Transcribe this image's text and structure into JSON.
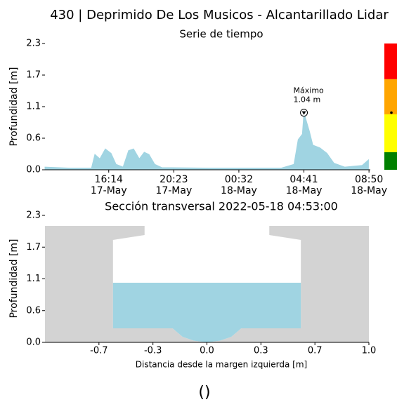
{
  "title": "430 | Deprimido De Los Musicos - Alcantarillado Lidar",
  "footer": "()",
  "chart_data": [
    {
      "type": "area",
      "title": "Serie de tiempo",
      "ylabel": "Profundidad [m]",
      "color": "#a0d4e2",
      "x": [
        "17-May 12:10",
        "17-May 13:47",
        "17-May 15:08",
        "17-May 15:21",
        "17-May 15:40",
        "17-May 16:01",
        "17-May 16:23",
        "17-May 16:42",
        "17-May 17:09",
        "17-May 17:30",
        "17-May 17:49",
        "17-May 18:11",
        "17-May 18:30",
        "17-May 18:48",
        "17-May 19:10",
        "17-May 19:37",
        "17-May 22:45",
        "18-May 03:14",
        "18-May 04:03",
        "18-May 04:19",
        "18-May 04:35",
        "18-May 04:41",
        "18-May 05:02",
        "18-May 05:15",
        "18-May 05:42",
        "18-May 06:09",
        "18-May 06:36",
        "18-May 07:17",
        "18-May 08:24",
        "18-May 08:48"
      ],
      "values": [
        0.05,
        0.03,
        0.03,
        0.28,
        0.2,
        0.38,
        0.3,
        0.1,
        0.05,
        0.35,
        0.38,
        0.2,
        0.32,
        0.28,
        0.1,
        0.04,
        0.03,
        0.03,
        0.1,
        0.55,
        0.65,
        1.04,
        0.7,
        0.45,
        0.4,
        0.3,
        0.12,
        0.05,
        0.08,
        0.18
      ],
      "xlim": [
        "17-May 12:10",
        "18-May 08:55"
      ],
      "xticks": [
        {
          "value": "17-May 16:14",
          "label": [
            "16:14",
            "17-May"
          ]
        },
        {
          "value": "17-May 20:23",
          "label": [
            "20:23",
            "17-May"
          ]
        },
        {
          "value": "18-May 00:32",
          "label": [
            "00:32",
            "18-May"
          ]
        },
        {
          "value": "18-May 04:41",
          "label": [
            "04:41",
            "18-May"
          ]
        },
        {
          "value": "18-May 08:50",
          "label": [
            "08:50",
            "18-May"
          ]
        }
      ],
      "ylim": [
        0,
        2.3
      ],
      "yticks": [
        {
          "value": 0,
          "label": "0.0"
        },
        {
          "value": 0.575,
          "label": "0.6"
        },
        {
          "value": 1.15,
          "label": "1.1"
        },
        {
          "value": 1.725,
          "label": "1.7"
        },
        2.3
      ],
      "annotation": {
        "text": [
          "Máximo",
          "1.04 m"
        ],
        "x": "18-May 04:41",
        "y": 1.04
      },
      "alert_levels": [
        {
          "color": "#008000",
          "from": 0,
          "to": 0.32
        },
        {
          "color": "#ffff00",
          "from": 0.32,
          "to": 1.01
        },
        {
          "color": "#ffa500",
          "from": 1.01,
          "to": 1.65
        },
        {
          "color": "#ff0000",
          "from": 1.65,
          "to": 2.3
        }
      ]
    },
    {
      "type": "cross_section",
      "title": "Sección transversal 2022-05-18 04:53:00",
      "ylabel": "Profundidad [m]",
      "xlabel": "Distancia desde la margen izquierda [m]",
      "wall_color": "#d3d3d3",
      "water_color": "#a0d4e2",
      "wall_top": 2.11,
      "water_level": 1.08,
      "profile": [
        [
          -0.58,
          1.855
        ],
        [
          -0.385,
          1.944
        ],
        [
          -0.385,
          2.11
        ],
        [
          0.385,
          2.11
        ],
        [
          0.385,
          1.944
        ],
        [
          0.58,
          1.855
        ],
        [
          0.58,
          0.254
        ],
        [
          0.212,
          0.254
        ],
        [
          0.15,
          0.1
        ],
        [
          0.08,
          0.03
        ],
        [
          0,
          0
        ],
        [
          -0.08,
          0.03
        ],
        [
          -0.15,
          0.1
        ],
        [
          -0.212,
          0.254
        ],
        [
          -0.58,
          0.254
        ]
      ],
      "xlim": [
        -1,
        1
      ],
      "xticks": [
        {
          "value": -0.6667,
          "label": "-0.7"
        },
        {
          "value": -0.3333,
          "label": "-0.3"
        },
        {
          "value": 0,
          "label": "0.0"
        },
        {
          "value": 0.3333,
          "label": "0.3"
        },
        {
          "value": 0.6667,
          "label": "0.7"
        },
        {
          "value": 1,
          "label": "1.0"
        }
      ],
      "ylim": [
        0,
        2.3
      ],
      "yticks": [
        {
          "value": 0,
          "label": "0.0"
        },
        {
          "value": 0.575,
          "label": "0.6"
        },
        {
          "value": 1.15,
          "label": "1.1"
        },
        {
          "value": 1.725,
          "label": "1.7"
        },
        2.3
      ]
    }
  ]
}
